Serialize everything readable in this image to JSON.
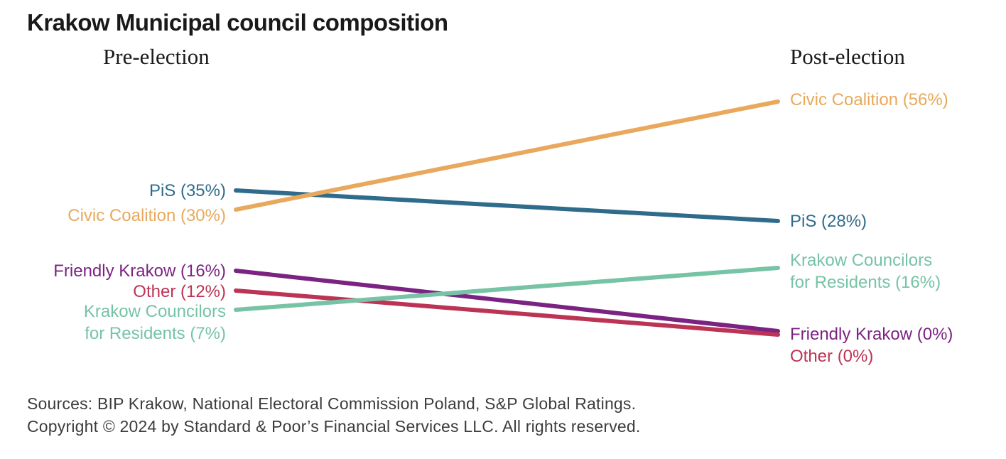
{
  "title": "Krakow Municipal council composition",
  "chart_data": {
    "type": "line",
    "subtype": "slope-chart",
    "stages": [
      "Pre-election",
      "Post-election"
    ],
    "unit": "% of council seats",
    "grid": false,
    "legend": "inline-labels",
    "series": [
      {
        "key": "pis",
        "name": "PiS",
        "color": "#2F6C8C",
        "values": [
          35,
          28
        ],
        "pre_label": "PiS (35%)",
        "post_label": "PiS (28%)"
      },
      {
        "key": "civic",
        "name": "Civic Coalition",
        "color": "#E8A95C",
        "values": [
          30,
          56
        ],
        "pre_label": "Civic Coalition (30%)",
        "post_label": "Civic Coalition (56%)"
      },
      {
        "key": "friendly",
        "name": "Friendly Krakow",
        "color": "#7B2382",
        "values": [
          16,
          0
        ],
        "pre_label": "Friendly Krakow (16%)",
        "post_label": "Friendly Krakow (0%)"
      },
      {
        "key": "other",
        "name": "Other",
        "color": "#BC3455",
        "values": [
          12,
          0
        ],
        "pre_label": "Other (12%)",
        "post_label": "Other (0%)"
      },
      {
        "key": "councilors",
        "name": "Krakow Councilors for Residents",
        "color": "#76C3A6",
        "values": [
          7,
          16
        ],
        "pre_label_line1": "Krakow Councilors",
        "pre_label_line2": "for Residents (7%)",
        "post_label_line1": "Krakow Councilors",
        "post_label_line2": "for Residents (16%)"
      }
    ]
  },
  "footer": {
    "sources": "Sources: BIP Krakow, National Electoral Commission Poland, S&P Global Ratings.",
    "copyright": "Copyright © 2024 by Standard & Poor’s Financial Services LLC. All rights reserved."
  }
}
